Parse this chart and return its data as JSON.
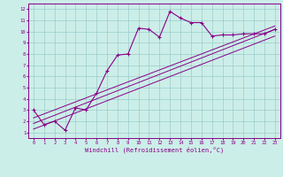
{
  "xlabel": "Windchill (Refroidissement éolien,°C)",
  "bg_color": "#cceee8",
  "line_color": "#880088",
  "grid_color": "#99cccc",
  "spine_color": "#880088",
  "tick_color": "#880088",
  "xlim": [
    -0.5,
    23.5
  ],
  "ylim": [
    0.5,
    12.5
  ],
  "xticks": [
    0,
    1,
    2,
    3,
    4,
    5,
    6,
    7,
    8,
    9,
    10,
    11,
    12,
    13,
    14,
    15,
    16,
    17,
    18,
    19,
    20,
    21,
    22,
    23
  ],
  "yticks": [
    1,
    2,
    3,
    4,
    5,
    6,
    7,
    8,
    9,
    10,
    11,
    12
  ],
  "curve1_x": [
    0,
    1,
    2,
    3,
    4,
    5,
    6,
    7,
    8,
    9,
    10,
    11,
    12,
    13,
    14,
    15,
    16,
    17,
    18,
    19,
    20,
    21,
    22,
    23
  ],
  "curve1_y": [
    3.0,
    1.7,
    2.0,
    1.2,
    3.2,
    3.0,
    4.5,
    6.5,
    7.9,
    8.0,
    10.3,
    10.2,
    9.5,
    11.8,
    11.2,
    10.8,
    10.8,
    9.6,
    9.7,
    9.7,
    9.8,
    9.8,
    9.8,
    10.2
  ],
  "line2_x": [
    0,
    23
  ],
  "line2_y": [
    1.8,
    10.2
  ],
  "line3_x": [
    0,
    23
  ],
  "line3_y": [
    2.3,
    10.5
  ],
  "line4_x": [
    0,
    23
  ],
  "line4_y": [
    1.3,
    9.6
  ]
}
